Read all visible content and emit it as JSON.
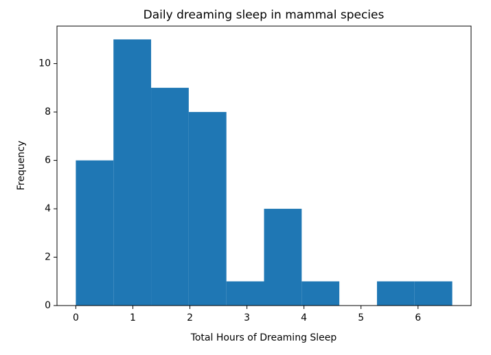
{
  "chart_data": {
    "type": "histogram",
    "title": "Daily dreaming sleep in mammal species",
    "x_label": "Total Hours of Dreaming Sleep",
    "y_label": "Frequency",
    "bins": [
      0,
      0.66,
      1.32,
      1.98,
      2.64,
      3.3,
      3.96,
      4.62,
      5.28,
      5.94,
      6.6
    ],
    "values": [
      6,
      11,
      9,
      8,
      1,
      4,
      1,
      0,
      1,
      1
    ],
    "color": "#1f77b4",
    "xlim": [
      -0.33,
      6.93
    ],
    "ylim": [
      0,
      11.55
    ],
    "xticks": [
      0,
      1,
      2,
      3,
      4,
      5,
      6
    ],
    "yticks": [
      0,
      2,
      4,
      6,
      8,
      10
    ]
  }
}
